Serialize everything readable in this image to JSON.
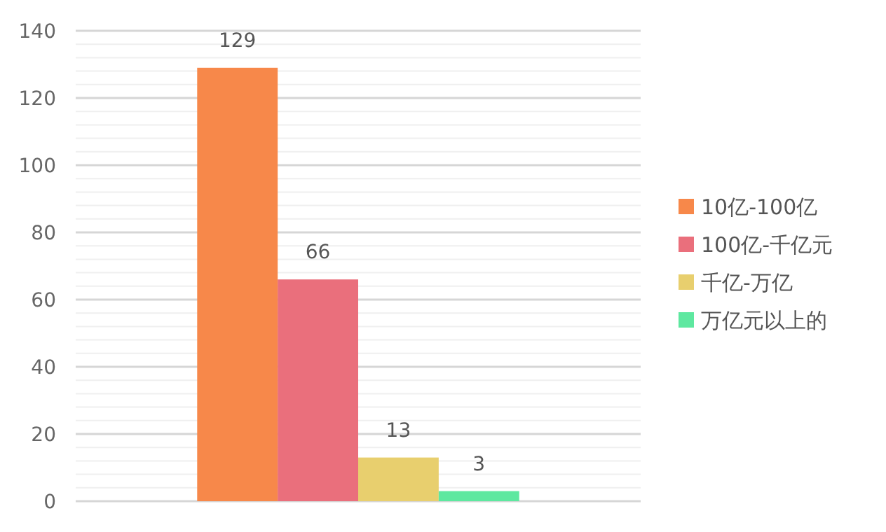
{
  "chart_data": {
    "type": "bar",
    "categories": [
      null
    ],
    "series": [
      {
        "name": "10亿-100亿",
        "color": "#f7884a",
        "values": [
          129
        ]
      },
      {
        "name": "100亿-千亿元",
        "color": "#ea6f7c",
        "values": [
          66
        ]
      },
      {
        "name": "千亿-万亿",
        "color": "#e8cf6e",
        "values": [
          13
        ]
      },
      {
        "name": "万亿元以上的",
        "color": "#5ee8a0",
        "values": [
          3
        ]
      }
    ],
    "ylim": [
      0,
      140
    ],
    "yticks": [
      0,
      {
        "value": 4,
        "label": null
      },
      {
        "value": 8,
        "label": null
      },
      {
        "value": 12,
        "label": null
      },
      {
        "value": 16,
        "label": null
      },
      20,
      {
        "value": 24,
        "label": null
      },
      {
        "value": 28,
        "label": null
      },
      {
        "value": 32,
        "label": null
      },
      {
        "value": 36,
        "label": null
      },
      40,
      {
        "value": 44,
        "label": null
      },
      {
        "value": 48,
        "label": null
      },
      {
        "value": 52,
        "label": null
      },
      {
        "value": 56,
        "label": null
      },
      60,
      {
        "value": 64,
        "label": null
      },
      {
        "value": 68,
        "label": null
      },
      {
        "value": 72,
        "label": null
      },
      {
        "value": 76,
        "label": null
      },
      80,
      {
        "value": 84,
        "label": null
      },
      {
        "value": 88,
        "label": null
      },
      {
        "value": 92,
        "label": null
      },
      {
        "value": 96,
        "label": null
      },
      100,
      {
        "value": 104,
        "label": null
      },
      {
        "value": 108,
        "label": null
      },
      {
        "value": 112,
        "label": null
      },
      {
        "value": 116,
        "label": null
      },
      120,
      {
        "value": 124,
        "label": null
      },
      {
        "value": 128,
        "label": null
      },
      {
        "value": 132,
        "label": null
      },
      {
        "value": 136,
        "label": null
      },
      140
    ],
    "grid": "y",
    "legend": "right",
    "data_labels": true
  }
}
